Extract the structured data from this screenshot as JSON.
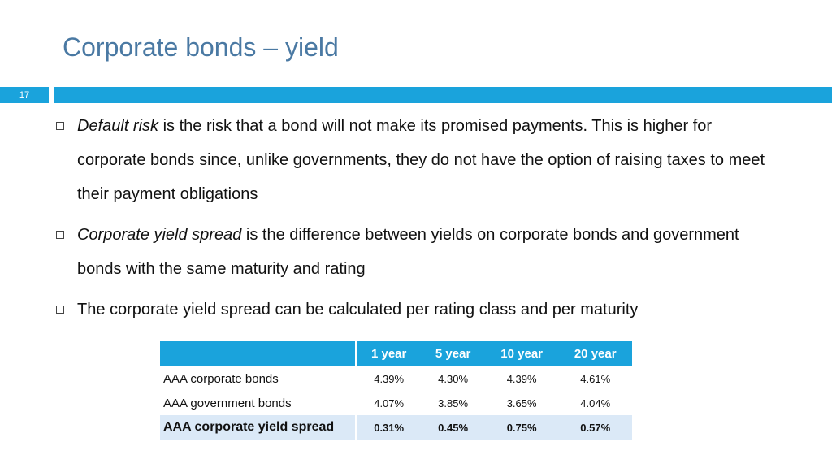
{
  "slide": {
    "title": "Corporate bonds – yield",
    "page_number": "17"
  },
  "bullets": [
    {
      "term": "Default risk",
      "text": " is the risk that a bond will not make its promised payments. This is higher for corporate bonds since, unlike governments, they do not have the option of raising taxes to meet their payment obligations"
    },
    {
      "term": "Corporate yield spread",
      "text": " is the difference between yields on corporate bonds and government bonds with the same maturity and rating"
    },
    {
      "term": "",
      "text": "The corporate yield spread can be calculated per rating class and per maturity"
    }
  ],
  "table": {
    "columns": [
      "1 year",
      "5 year",
      "10 year",
      "20 year"
    ],
    "rows": [
      {
        "label": "AAA corporate bonds",
        "values": [
          "4.39%",
          "4.30%",
          "4.39%",
          "4.61%"
        ]
      },
      {
        "label": "AAA government bonds",
        "values": [
          "4.07%",
          "3.85%",
          "3.65%",
          "4.04%"
        ]
      },
      {
        "label": "AAA corporate yield spread",
        "values": [
          "0.31%",
          "0.45%",
          "0.75%",
          "0.57%"
        ]
      }
    ]
  },
  "colors": {
    "accent": "#1aa3dc",
    "title": "#4a79a3",
    "highlight_row": "#dbe9f7"
  }
}
